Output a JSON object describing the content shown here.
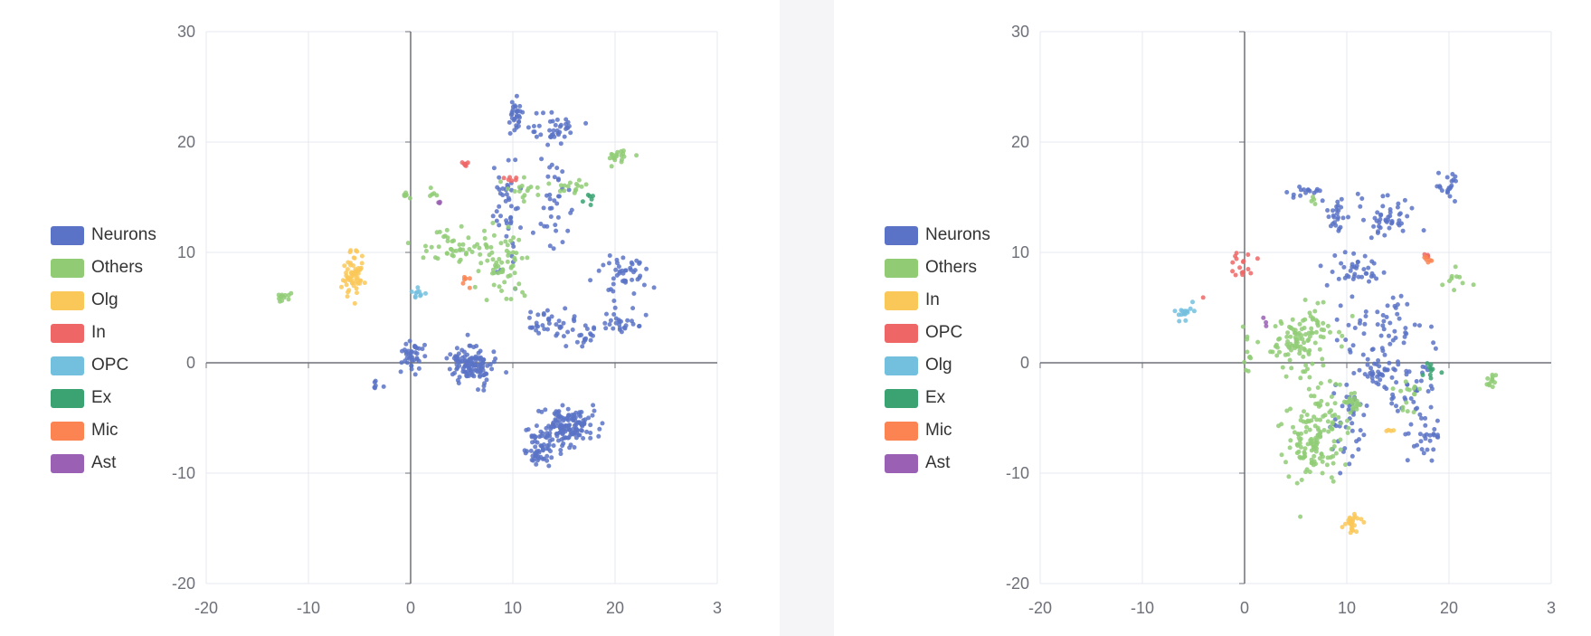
{
  "chart_data": [
    {
      "type": "scatter",
      "title": "",
      "xlabel": "",
      "ylabel": "",
      "xlim": [
        -20,
        30
      ],
      "ylim": [
        -20,
        30
      ],
      "x_ticks": [
        "-20",
        "-10",
        "0",
        "10",
        "20",
        "3"
      ],
      "y_ticks": [
        "30",
        "20",
        "10",
        "0",
        "-10",
        "-20"
      ],
      "grid": true,
      "legend_position": "left",
      "series": [
        {
          "name": "Neurons",
          "color": "#5b73c6",
          "clusters": [
            {
              "cx": 10.2,
              "cy": 22.2,
              "sx": 0.4,
              "sy": 0.8,
              "n": 30
            },
            {
              "cx": 14.2,
              "cy": 21.3,
              "sx": 1.1,
              "sy": 0.6,
              "n": 35
            },
            {
              "cx": 9.5,
              "cy": 13.5,
              "sx": 0.8,
              "sy": 2.4,
              "n": 45
            },
            {
              "cx": 13.8,
              "cy": 14.5,
              "sx": 1.0,
              "sy": 3.0,
              "n": 40
            },
            {
              "cx": 20.5,
              "cy": 8.5,
              "sx": 1.2,
              "sy": 0.9,
              "n": 30
            },
            {
              "cx": 21.5,
              "cy": 6.0,
              "sx": 1.4,
              "sy": 1.5,
              "n": 20
            },
            {
              "cx": 13.5,
              "cy": 3.5,
              "sx": 0.9,
              "sy": 0.6,
              "n": 30
            },
            {
              "cx": 17.0,
              "cy": 2.7,
              "sx": 1.3,
              "sy": 0.7,
              "n": 25
            },
            {
              "cx": 20.5,
              "cy": 3.3,
              "sx": 0.7,
              "sy": 0.6,
              "n": 20
            },
            {
              "cx": 0.0,
              "cy": 0.8,
              "sx": 0.6,
              "sy": 0.7,
              "n": 40
            },
            {
              "cx": 6.0,
              "cy": -0.2,
              "sx": 1.0,
              "sy": 0.9,
              "n": 120
            },
            {
              "cx": 15.2,
              "cy": -5.9,
              "sx": 1.4,
              "sy": 0.9,
              "n": 150
            },
            {
              "cx": 12.5,
              "cy": -8.0,
              "sx": 0.8,
              "sy": 0.8,
              "n": 50
            },
            {
              "cx": -3.3,
              "cy": -1.8,
              "sx": 0.2,
              "sy": 0.3,
              "n": 6
            }
          ]
        },
        {
          "name": "Others",
          "color": "#91cc75",
          "clusters": [
            {
              "cx": 4.5,
              "cy": 10.5,
              "sx": 2.0,
              "sy": 0.8,
              "n": 50
            },
            {
              "cx": 9.0,
              "cy": 9.0,
              "sx": 1.2,
              "sy": 1.5,
              "n": 55
            },
            {
              "cx": 11.0,
              "cy": 15.8,
              "sx": 1.3,
              "sy": 0.5,
              "n": 15
            },
            {
              "cx": 15.5,
              "cy": 16.0,
              "sx": 1.0,
              "sy": 0.4,
              "n": 15
            },
            {
              "cx": 20.2,
              "cy": 18.8,
              "sx": 0.8,
              "sy": 0.5,
              "n": 18
            },
            {
              "cx": -12.5,
              "cy": 6.0,
              "sx": 0.4,
              "sy": 0.3,
              "n": 12
            },
            {
              "cx": -0.5,
              "cy": 15.2,
              "sx": 0.3,
              "sy": 0.2,
              "n": 6
            },
            {
              "cx": 2.2,
              "cy": 15.4,
              "sx": 0.2,
              "sy": 0.4,
              "n": 5
            }
          ]
        },
        {
          "name": "Olg",
          "color": "#fac858",
          "clusters": [
            {
              "cx": -5.7,
              "cy": 7.8,
              "sx": 0.6,
              "sy": 1.0,
              "n": 60
            }
          ]
        },
        {
          "name": "In",
          "color": "#ee6666",
          "clusters": [
            {
              "cx": 5.3,
              "cy": 17.8,
              "sx": 0.3,
              "sy": 0.2,
              "n": 6
            },
            {
              "cx": 9.8,
              "cy": 16.6,
              "sx": 0.3,
              "sy": 0.2,
              "n": 6
            }
          ]
        },
        {
          "name": "OPC",
          "color": "#73c0de",
          "clusters": [
            {
              "cx": 0.9,
              "cy": 6.4,
              "sx": 0.4,
              "sy": 0.3,
              "n": 10
            }
          ]
        },
        {
          "name": "Ex",
          "color": "#3ba272",
          "clusters": [
            {
              "cx": 17.6,
              "cy": 15.0,
              "sx": 0.2,
              "sy": 0.3,
              "n": 6
            }
          ]
        },
        {
          "name": "Mic",
          "color": "#fc8452",
          "clusters": [
            {
              "cx": 5.5,
              "cy": 7.5,
              "sx": 0.2,
              "sy": 0.4,
              "n": 6
            }
          ]
        },
        {
          "name": "Ast",
          "color": "#9a60b4",
          "clusters": [
            {
              "cx": 2.9,
              "cy": 14.5,
              "sx": 0.2,
              "sy": 0.1,
              "n": 3
            }
          ]
        }
      ]
    },
    {
      "type": "scatter",
      "title": "",
      "xlabel": "",
      "ylabel": "",
      "xlim": [
        -20,
        30
      ],
      "ylim": [
        -20,
        30
      ],
      "x_ticks": [
        "-20",
        "-10",
        "0",
        "10",
        "20",
        "3"
      ],
      "y_ticks": [
        "30",
        "20",
        "10",
        "0",
        "-10",
        "-20"
      ],
      "grid": true,
      "legend_position": "left",
      "series": [
        {
          "name": "Neurons",
          "color": "#5b73c6",
          "clusters": [
            {
              "cx": 6.0,
              "cy": 15.3,
              "sx": 1.0,
              "sy": 0.3,
              "n": 15
            },
            {
              "cx": 8.8,
              "cy": 13.0,
              "sx": 0.5,
              "sy": 0.7,
              "n": 25
            },
            {
              "cx": 14.5,
              "cy": 13.0,
              "sx": 1.3,
              "sy": 1.0,
              "n": 45
            },
            {
              "cx": 20.0,
              "cy": 16.3,
              "sx": 0.4,
              "sy": 0.6,
              "n": 20
            },
            {
              "cx": 10.8,
              "cy": 8.5,
              "sx": 1.2,
              "sy": 0.9,
              "n": 40
            },
            {
              "cx": 14.0,
              "cy": 3.0,
              "sx": 2.2,
              "sy": 1.8,
              "n": 60
            },
            {
              "cx": 12.8,
              "cy": -1.0,
              "sx": 0.7,
              "sy": 0.5,
              "n": 30
            },
            {
              "cx": 16.5,
              "cy": -3.0,
              "sx": 1.2,
              "sy": 1.5,
              "n": 40
            },
            {
              "cx": 17.8,
              "cy": -7.0,
              "sx": 0.8,
              "sy": 1.0,
              "n": 25
            },
            {
              "cx": 10.0,
              "cy": -5.0,
              "sx": 1.0,
              "sy": 1.8,
              "n": 40
            }
          ]
        },
        {
          "name": "Others",
          "color": "#91cc75",
          "clusters": [
            {
              "cx": 5.5,
              "cy": 2.0,
              "sx": 1.6,
              "sy": 1.5,
              "n": 110
            },
            {
              "cx": 7.0,
              "cy": -6.5,
              "sx": 1.5,
              "sy": 2.0,
              "n": 140
            },
            {
              "cx": 10.2,
              "cy": -3.8,
              "sx": 0.6,
              "sy": 0.5,
              "n": 25
            },
            {
              "cx": 24.2,
              "cy": -1.5,
              "sx": 0.2,
              "sy": 0.5,
              "n": 12
            },
            {
              "cx": 21.0,
              "cy": 7.5,
              "sx": 0.9,
              "sy": 0.5,
              "n": 10
            },
            {
              "cx": 0.3,
              "cy": 1.0,
              "sx": 0.3,
              "sy": 1.5,
              "n": 10
            },
            {
              "cx": 15.8,
              "cy": -3.0,
              "sx": 0.6,
              "sy": 0.8,
              "n": 15
            },
            {
              "cx": 6.8,
              "cy": 14.5,
              "sx": 0.2,
              "sy": 0.3,
              "n": 4
            }
          ]
        },
        {
          "name": "In",
          "color": "#fac858",
          "clusters": [
            {
              "cx": 10.5,
              "cy": -14.5,
              "sx": 0.5,
              "sy": 0.5,
              "n": 25
            },
            {
              "cx": 14.3,
              "cy": -6.1,
              "sx": 0.4,
              "sy": 0.1,
              "n": 4
            }
          ]
        },
        {
          "name": "OPC",
          "color": "#ee6666",
          "clusters": [
            {
              "cx": -0.3,
              "cy": 8.6,
              "sx": 0.6,
              "sy": 0.6,
              "n": 16
            },
            {
              "cx": 18.0,
              "cy": 9.6,
              "sx": 0.3,
              "sy": 0.2,
              "n": 4
            },
            {
              "cx": -4.2,
              "cy": 5.8,
              "sx": 0.1,
              "sy": 0.1,
              "n": 1
            }
          ]
        },
        {
          "name": "Olg",
          "color": "#73c0de",
          "clusters": [
            {
              "cx": -5.8,
              "cy": 4.5,
              "sx": 0.6,
              "sy": 0.5,
              "n": 15
            }
          ]
        },
        {
          "name": "Ex",
          "color": "#3ba272",
          "clusters": [
            {
              "cx": 18.2,
              "cy": -0.8,
              "sx": 0.6,
              "sy": 0.4,
              "n": 10
            }
          ]
        },
        {
          "name": "Mic",
          "color": "#fc8452",
          "clusters": [
            {
              "cx": 17.9,
              "cy": 9.3,
              "sx": 0.3,
              "sy": 0.3,
              "n": 6
            }
          ]
        },
        {
          "name": "Ast",
          "color": "#9a60b4",
          "clusters": [
            {
              "cx": 2.0,
              "cy": 3.6,
              "sx": 0.2,
              "sy": 0.2,
              "n": 3
            }
          ]
        }
      ]
    }
  ]
}
